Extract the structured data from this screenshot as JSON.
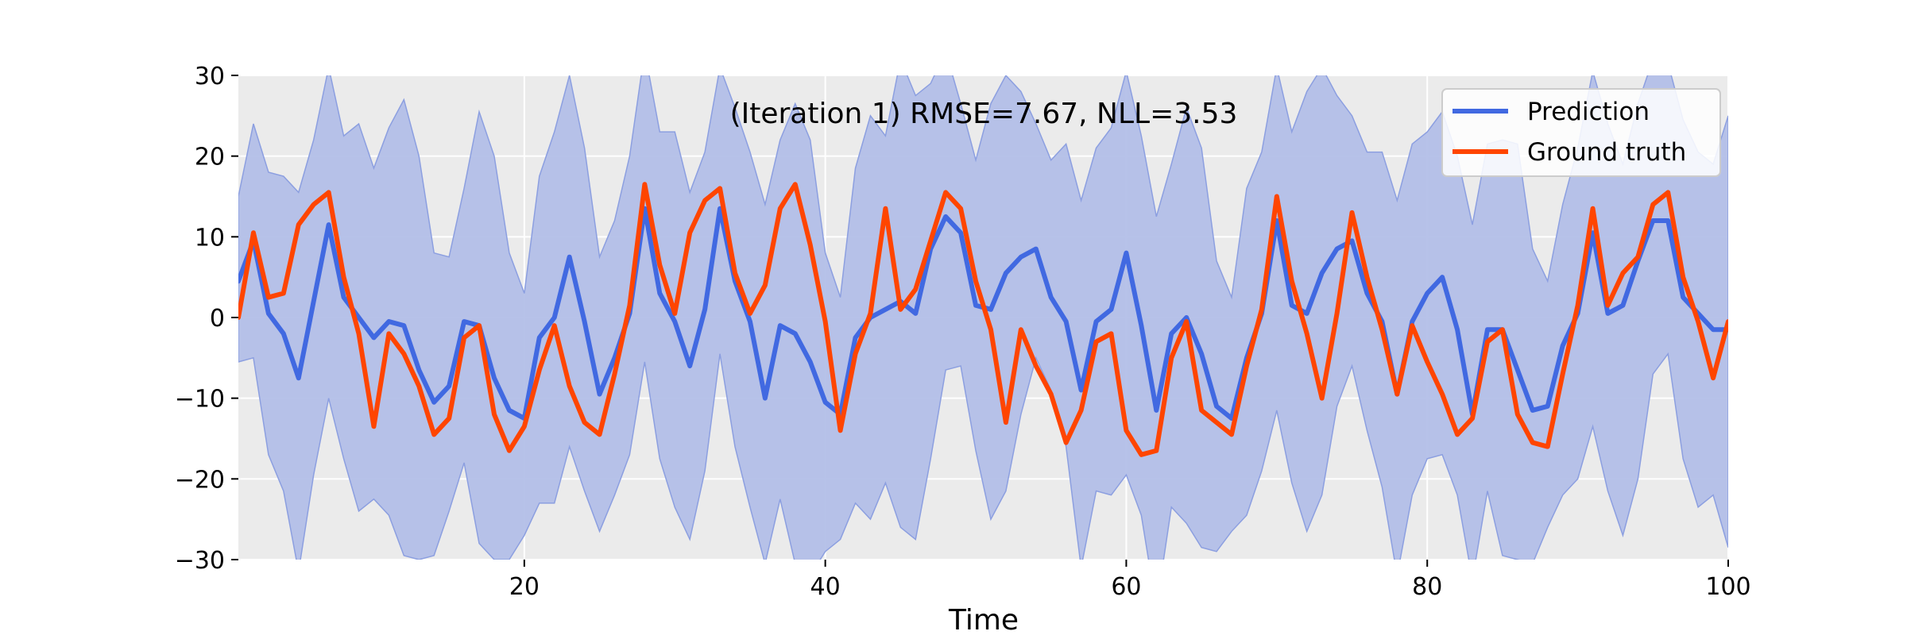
{
  "chart_data": {
    "type": "line",
    "title": "(Iteration 1) RMSE=7.67, NLL=3.53",
    "xlabel": "Time",
    "ylabel": "",
    "xlim": [
      1,
      100
    ],
    "ylim": [
      -30,
      30
    ],
    "x_ticks": [
      20,
      40,
      60,
      80,
      100
    ],
    "y_ticks": [
      -30,
      -20,
      -10,
      0,
      10,
      20,
      30
    ],
    "y_tick_labels": [
      "−30",
      "−20",
      "−10",
      "0",
      "10",
      "20",
      "30"
    ],
    "grid": true,
    "legend_position": "top-right",
    "x": [
      1,
      2,
      3,
      4,
      5,
      6,
      7,
      8,
      9,
      10,
      11,
      12,
      13,
      14,
      15,
      16,
      17,
      18,
      19,
      20,
      21,
      22,
      23,
      24,
      25,
      26,
      27,
      28,
      29,
      30,
      31,
      32,
      33,
      34,
      35,
      36,
      37,
      38,
      39,
      40,
      41,
      42,
      43,
      44,
      45,
      46,
      47,
      48,
      49,
      50,
      51,
      52,
      53,
      54,
      55,
      56,
      57,
      58,
      59,
      60,
      61,
      62,
      63,
      64,
      65,
      66,
      67,
      68,
      69,
      70,
      71,
      72,
      73,
      74,
      75,
      76,
      77,
      78,
      79,
      80,
      81,
      82,
      83,
      84,
      85,
      86,
      87,
      88,
      89,
      90,
      91,
      92,
      93,
      94,
      95,
      96,
      97,
      98,
      99,
      100
    ],
    "series": [
      {
        "name": "Prediction",
        "color": "#4169e1",
        "values": [
          4.5,
          9.5,
          0.5,
          -2,
          -7.5,
          2,
          11.5,
          2.5,
          0,
          -2.5,
          -0.5,
          -1,
          -6.5,
          -10.5,
          -8.5,
          -0.5,
          -1,
          -7.5,
          -11.5,
          -12.5,
          -2.5,
          0,
          7.5,
          -0.5,
          -9.5,
          -5,
          0.5,
          13.5,
          3,
          -0.5,
          -6,
          1,
          13.5,
          4.5,
          -0.5,
          -10,
          -1,
          -2,
          -5.5,
          -10.5,
          -12,
          -2.5,
          0,
          1,
          2,
          0.5,
          8.5,
          12.5,
          10.5,
          1.5,
          1,
          5.5,
          7.5,
          8.5,
          2.5,
          -0.5,
          -9,
          -0.5,
          1,
          8,
          -1,
          -11.5,
          -2,
          0,
          -4.5,
          -11,
          -12.5,
          -5,
          0.5,
          12,
          1.5,
          0.5,
          5.5,
          8.5,
          9.5,
          3,
          -0.5,
          -9.5,
          -0.5,
          3,
          5,
          -1.5,
          -12,
          -1.5,
          -1.5,
          -6.5,
          -11.5,
          -11,
          -3.5,
          0.5,
          10.5,
          0.5,
          1.5,
          7,
          12,
          12,
          2.5,
          0.5,
          -1.5,
          -1.5
        ]
      },
      {
        "name": "Ground truth",
        "color": "#ff4500",
        "values": [
          0,
          10.5,
          2.5,
          3,
          11.5,
          14,
          15.5,
          5,
          -2,
          -13.5,
          -2,
          -4.5,
          -8.5,
          -14.5,
          -12.5,
          -2.5,
          -1,
          -12,
          -16.5,
          -13.5,
          -6.5,
          -1,
          -8.5,
          -13,
          -14.5,
          -7,
          1.5,
          16.5,
          6.5,
          0.5,
          10.5,
          14.5,
          16,
          5.5,
          0.5,
          4,
          13.5,
          16.5,
          9,
          -0.5,
          -14,
          -4.5,
          0.5,
          13.5,
          1,
          3.5,
          9.5,
          15.5,
          13.5,
          4.5,
          -1.5,
          -13,
          -1.5,
          -6,
          -9.5,
          -15.5,
          -11.5,
          -3,
          -2,
          -14,
          -17,
          -16.5,
          -5,
          -0.5,
          -11.5,
          -13,
          -14.5,
          -6,
          1,
          15,
          4.5,
          -2,
          -10,
          0.5,
          13,
          5,
          -1.5,
          -9.5,
          -1,
          -5.5,
          -9.5,
          -14.5,
          -12.5,
          -3,
          -1.5,
          -12,
          -15.5,
          -16,
          -7,
          1.5,
          13.5,
          1.5,
          5.5,
          7.5,
          14,
          15.5,
          5,
          -0.5,
          -7.5,
          -0.5
        ]
      }
    ],
    "uncertainty_band": {
      "color": "#b3bfe8",
      "upper": [
        15,
        24,
        18,
        17.5,
        15.5,
        22,
        31,
        22.5,
        24,
        18.5,
        23.5,
        27,
        20,
        8,
        7.5,
        16,
        25.5,
        20,
        8,
        3,
        17.5,
        23,
        30,
        21,
        7.5,
        12,
        20,
        33,
        23,
        23,
        15.5,
        20.5,
        31,
        26,
        20.5,
        14,
        22,
        26.5,
        22,
        8,
        2.5,
        18.5,
        25,
        22.5,
        32,
        27.5,
        29,
        33,
        26.5,
        19.5,
        26.5,
        30,
        28,
        24,
        19.5,
        21.5,
        14.5,
        21,
        23.5,
        30.5,
        22.5,
        12.5,
        19,
        26,
        21,
        7,
        2.5,
        16,
        20.5,
        31,
        23,
        28,
        31,
        27.5,
        25,
        20.5,
        20.5,
        14.5,
        21.5,
        23,
        25.5,
        20,
        11.5,
        21.5,
        22,
        21.5,
        8.5,
        4.5,
        14,
        21,
        30.5,
        24,
        19,
        26.5,
        32,
        31.5,
        24.5,
        20.5,
        19,
        25
      ],
      "lower": [
        -5.5,
        -5,
        -17,
        -21.5,
        -31.5,
        -19.5,
        -10,
        -17.5,
        -24,
        -22.5,
        -24.5,
        -29.5,
        -30,
        -29.5,
        -24,
        -18,
        -28,
        -30,
        -30,
        -27,
        -23,
        -23,
        -16,
        -21.5,
        -26.5,
        -22,
        -17,
        -5.5,
        -17.5,
        -23.5,
        -27.5,
        -19,
        -4.5,
        -16,
        -23.5,
        -30.5,
        -22.5,
        -30.5,
        -32,
        -29,
        -27.5,
        -23,
        -25,
        -20.5,
        -26,
        -27.5,
        -17.5,
        -6.5,
        -6,
        -16.5,
        -25,
        -21.5,
        -12,
        -5,
        -9,
        -16,
        -31,
        -21.5,
        -22,
        -19.5,
        -24.5,
        -36,
        -23.5,
        -25.5,
        -28.5,
        -29,
        -26.5,
        -24.5,
        -19,
        -11.5,
        -20.5,
        -26.5,
        -22,
        -11,
        -6,
        -14,
        -21,
        -32,
        -22,
        -17.5,
        -17,
        -22,
        -32.5,
        -21.5,
        -29.5,
        -30,
        -30.5,
        -26,
        -22,
        -20,
        -13.5,
        -21.5,
        -27,
        -20,
        -7,
        -4.5,
        -17.5,
        -23.5,
        -22,
        -28.5
      ]
    }
  }
}
